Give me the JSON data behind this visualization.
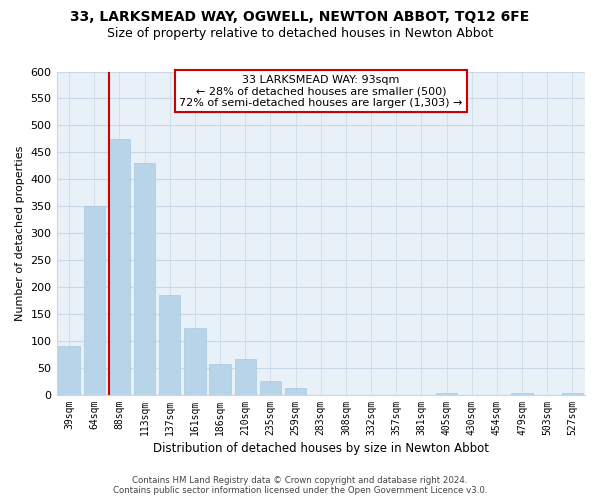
{
  "title": "33, LARKSMEAD WAY, OGWELL, NEWTON ABBOT, TQ12 6FE",
  "subtitle": "Size of property relative to detached houses in Newton Abbot",
  "xlabel": "Distribution of detached houses by size in Newton Abbot",
  "ylabel": "Number of detached properties",
  "bar_labels": [
    "39sqm",
    "64sqm",
    "88sqm",
    "113sqm",
    "137sqm",
    "161sqm",
    "186sqm",
    "210sqm",
    "235sqm",
    "259sqm",
    "283sqm",
    "308sqm",
    "332sqm",
    "357sqm",
    "381sqm",
    "405sqm",
    "430sqm",
    "454sqm",
    "479sqm",
    "503sqm",
    "527sqm"
  ],
  "bar_values": [
    90,
    350,
    475,
    430,
    185,
    125,
    57,
    67,
    25,
    12,
    0,
    0,
    0,
    0,
    0,
    3,
    0,
    0,
    3,
    0,
    3
  ],
  "bar_color": "#b8d4e8",
  "bar_edge_color": "#aac8e0",
  "ylim": [
    0,
    600
  ],
  "yticks": [
    0,
    50,
    100,
    150,
    200,
    250,
    300,
    350,
    400,
    450,
    500,
    550,
    600
  ],
  "vline_color": "#cc0000",
  "annotation_title": "33 LARKSMEAD WAY: 93sqm",
  "annotation_line1": "← 28% of detached houses are smaller (500)",
  "annotation_line2": "72% of semi-detached houses are larger (1,303) →",
  "annotation_box_color": "#ffffff",
  "annotation_box_edge": "#cc0000",
  "footer_line1": "Contains HM Land Registry data © Crown copyright and database right 2024.",
  "footer_line2": "Contains public sector information licensed under the Open Government Licence v3.0.",
  "background_color": "#ffffff",
  "plot_bg_color": "#e8f0f8",
  "grid_color": "#c8d8e8",
  "title_fontsize": 10,
  "subtitle_fontsize": 9
}
